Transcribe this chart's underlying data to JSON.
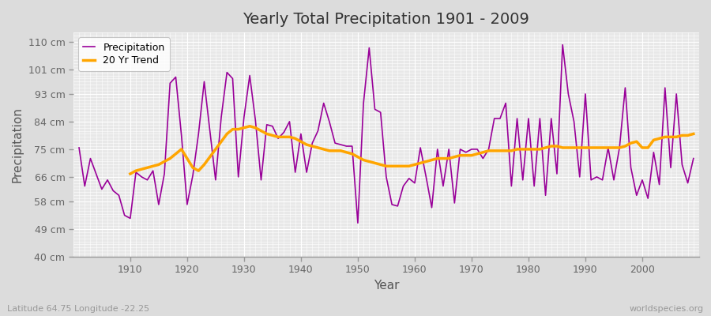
{
  "title": "Yearly Total Precipitation 1901 - 2009",
  "xlabel": "Year",
  "ylabel": "Precipitation",
  "lat_lon_label": "Latitude 64.75 Longitude -22.25",
  "watermark": "worldspecies.org",
  "years": [
    1901,
    1902,
    1903,
    1904,
    1905,
    1906,
    1907,
    1908,
    1909,
    1910,
    1911,
    1912,
    1913,
    1914,
    1915,
    1916,
    1917,
    1918,
    1919,
    1920,
    1921,
    1922,
    1923,
    1924,
    1925,
    1926,
    1927,
    1928,
    1929,
    1930,
    1931,
    1932,
    1933,
    1934,
    1935,
    1936,
    1937,
    1938,
    1939,
    1940,
    1941,
    1942,
    1943,
    1944,
    1945,
    1946,
    1947,
    1948,
    1949,
    1950,
    1951,
    1952,
    1953,
    1954,
    1955,
    1956,
    1957,
    1958,
    1959,
    1960,
    1961,
    1962,
    1963,
    1964,
    1965,
    1966,
    1967,
    1968,
    1969,
    1970,
    1971,
    1972,
    1973,
    1974,
    1975,
    1976,
    1977,
    1978,
    1979,
    1980,
    1981,
    1982,
    1983,
    1984,
    1985,
    1986,
    1987,
    1988,
    1989,
    1990,
    1991,
    1992,
    1993,
    1994,
    1995,
    1996,
    1997,
    1998,
    1999,
    2000,
    2001,
    2002,
    2003,
    2004,
    2005,
    2006,
    2007,
    2008,
    2009
  ],
  "precipitation": [
    75.5,
    63.0,
    72.0,
    67.0,
    62.0,
    65.0,
    61.5,
    60.0,
    53.5,
    52.5,
    67.5,
    66.0,
    65.0,
    68.0,
    57.0,
    67.0,
    96.5,
    98.5,
    79.5,
    57.0,
    66.5,
    80.0,
    97.0,
    81.0,
    65.0,
    85.5,
    100.0,
    98.0,
    66.0,
    85.5,
    99.0,
    84.5,
    65.0,
    83.0,
    82.5,
    78.5,
    80.5,
    84.0,
    67.5,
    80.0,
    67.5,
    77.0,
    81.0,
    90.0,
    84.0,
    77.0,
    76.5,
    76.0,
    76.0,
    51.0,
    90.0,
    108.0,
    88.0,
    87.0,
    66.0,
    57.0,
    56.5,
    63.0,
    65.5,
    64.0,
    75.5,
    66.0,
    56.0,
    75.0,
    63.0,
    75.0,
    57.5,
    75.0,
    74.0,
    75.0,
    75.0,
    72.0,
    75.0,
    85.0,
    85.0,
    90.0,
    63.0,
    85.0,
    65.0,
    85.0,
    63.0,
    85.0,
    60.0,
    85.0,
    67.0,
    109.0,
    93.0,
    84.0,
    66.0,
    93.0,
    65.0,
    66.0,
    65.0,
    75.5,
    65.0,
    75.5,
    95.0,
    69.0,
    60.0,
    65.0,
    59.0,
    74.0,
    63.5,
    95.0,
    69.0,
    93.0,
    70.0,
    64.0,
    72.0
  ],
  "trend_years": [
    1910,
    1911,
    1912,
    1913,
    1914,
    1915,
    1916,
    1917,
    1918,
    1919,
    1920,
    1921,
    1922,
    1923,
    1924,
    1925,
    1926,
    1927,
    1928,
    1929,
    1930,
    1931,
    1932,
    1933,
    1934,
    1935,
    1936,
    1937,
    1938,
    1939,
    1940,
    1941,
    1942,
    1943,
    1944,
    1945,
    1946,
    1947,
    1948,
    1949,
    1950,
    1951,
    1952,
    1953,
    1954,
    1955,
    1956,
    1957,
    1958,
    1959,
    1960,
    1961,
    1962,
    1963,
    1964,
    1965,
    1966,
    1967,
    1968,
    1969,
    1970,
    1971,
    1972,
    1973,
    1974,
    1975,
    1976,
    1977,
    1978,
    1979,
    1980,
    1981,
    1982,
    1983,
    1984,
    1985,
    1986,
    1987,
    1988,
    1989,
    1990,
    1991,
    1992,
    1993,
    1994,
    1995,
    1996,
    1997,
    1998,
    1999,
    2000,
    2001,
    2002,
    2003,
    2004,
    2005,
    2006,
    2007,
    2008,
    2009
  ],
  "trend": [
    67.0,
    68.0,
    68.5,
    69.0,
    69.5,
    70.0,
    71.0,
    72.0,
    73.5,
    75.0,
    72.0,
    69.0,
    68.0,
    70.0,
    72.5,
    75.0,
    77.5,
    80.0,
    81.5,
    81.5,
    82.0,
    82.5,
    82.0,
    81.0,
    80.0,
    79.5,
    79.0,
    79.0,
    79.0,
    78.5,
    77.5,
    76.5,
    76.0,
    75.5,
    75.0,
    74.5,
    74.5,
    74.5,
    74.0,
    73.5,
    72.5,
    71.5,
    71.0,
    70.5,
    70.0,
    69.5,
    69.5,
    69.5,
    69.5,
    69.5,
    70.0,
    70.5,
    71.0,
    71.5,
    72.0,
    72.0,
    72.0,
    72.5,
    73.0,
    73.0,
    73.0,
    73.5,
    74.0,
    74.5,
    74.5,
    74.5,
    74.5,
    74.5,
    75.0,
    75.0,
    75.0,
    75.0,
    75.0,
    75.5,
    76.0,
    76.0,
    75.5,
    75.5,
    75.5,
    75.5,
    75.5,
    75.5,
    75.5,
    75.5,
    75.5,
    75.5,
    75.5,
    76.0,
    77.0,
    77.5,
    75.5,
    75.5,
    78.0,
    78.5,
    79.0,
    79.0,
    79.0,
    79.5,
    79.5,
    80.0
  ],
  "precip_color": "#990099",
  "trend_color": "#FFA500",
  "bg_color": "#DCDCDC",
  "plot_bg_color": "#E8E8E8",
  "grid_color": "#FFFFFF",
  "ylim": [
    40,
    113
  ],
  "yticks": [
    40,
    49,
    58,
    66,
    75,
    84,
    93,
    101,
    110
  ],
  "ytick_labels": [
    "40 cm",
    "49 cm",
    "58 cm",
    "66 cm",
    "75 cm",
    "84 cm",
    "93 cm",
    "101 cm",
    "110 cm"
  ],
  "xlim": [
    1900,
    2010
  ],
  "xticks": [
    1910,
    1920,
    1930,
    1940,
    1950,
    1960,
    1970,
    1980,
    1990,
    2000
  ]
}
